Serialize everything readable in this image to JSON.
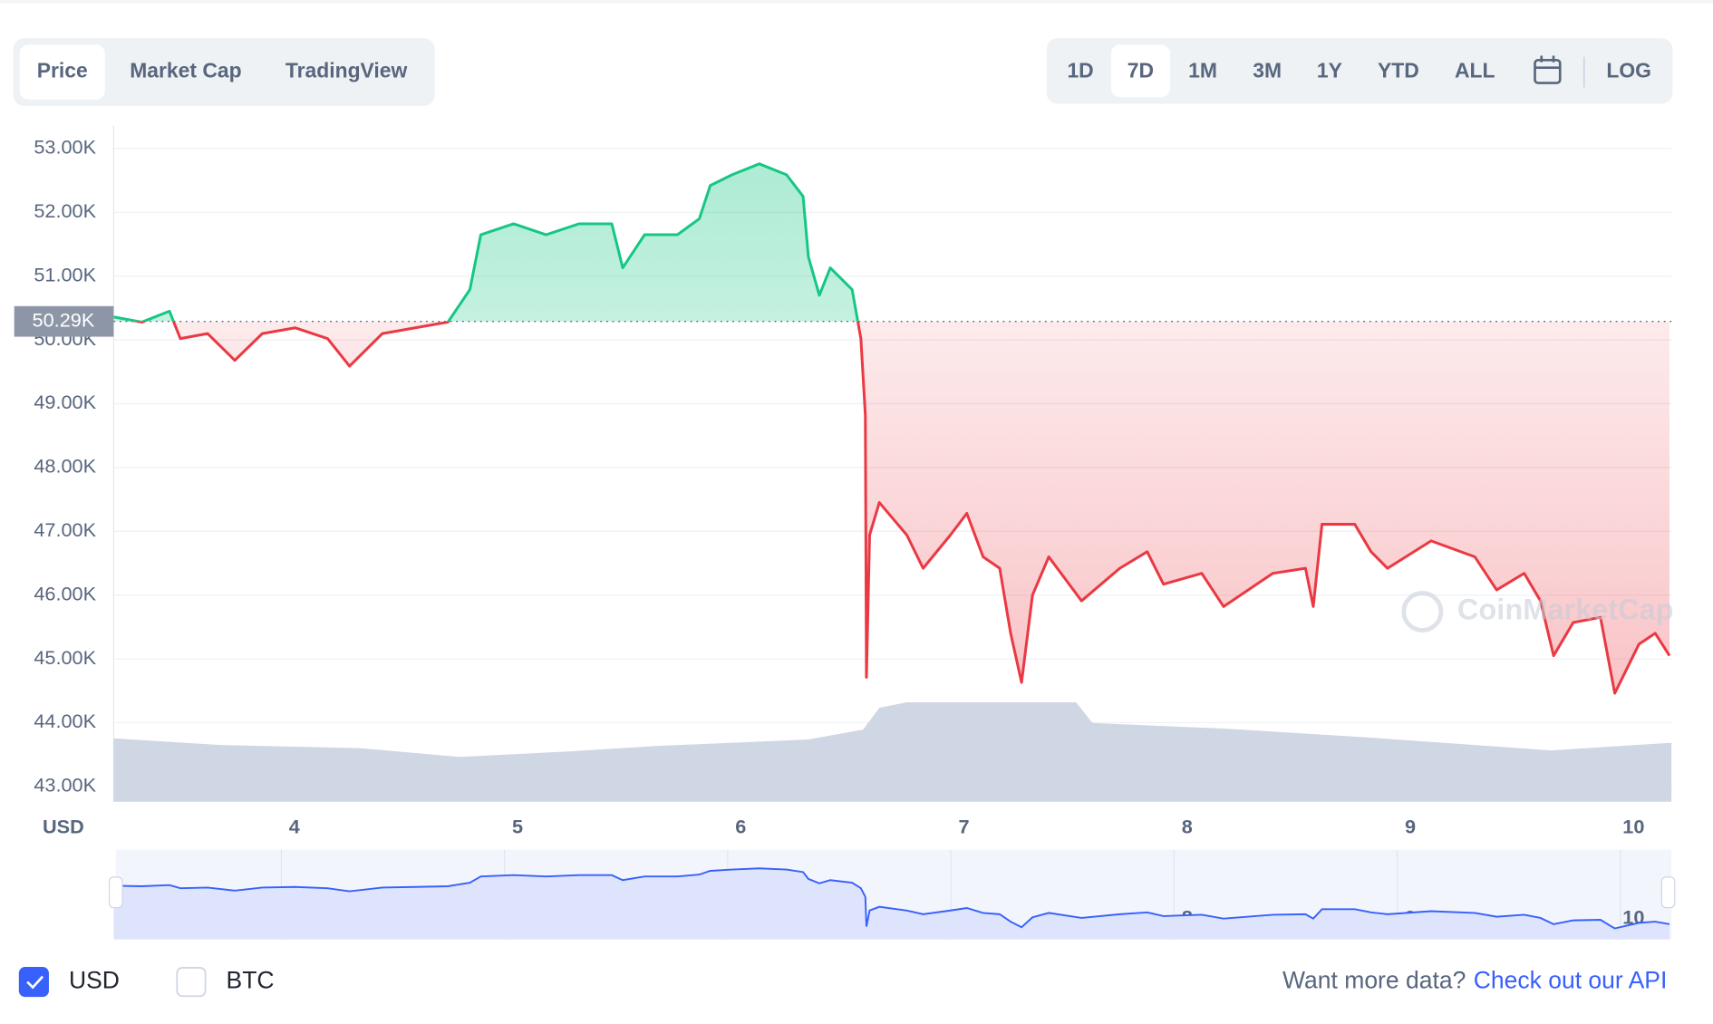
{
  "tabs": [
    "Price",
    "Market Cap",
    "TradingView"
  ],
  "active_tab": 0,
  "ranges": [
    "1D",
    "7D",
    "1M",
    "3M",
    "1Y",
    "YTD",
    "ALL"
  ],
  "active_range": 1,
  "scale_toggle": "LOG",
  "watermark": "CoinMarketCap",
  "currency_toggles": [
    {
      "label": "USD",
      "checked": true
    },
    {
      "label": "BTC",
      "checked": false
    }
  ],
  "footer": {
    "text": "Want more data?",
    "link": "Check out our API"
  },
  "chart_data": {
    "type": "line",
    "currency_label": "USD",
    "x": [
      3.19,
      3.317,
      3.44,
      3.489,
      3.611,
      3.733,
      3.856,
      4.003,
      4.149,
      4.247,
      4.394,
      4.541,
      4.688,
      4.786,
      4.835,
      4.982,
      5.128,
      5.275,
      5.422,
      5.471,
      5.569,
      5.716,
      5.814,
      5.863,
      5.961,
      6.083,
      6.205,
      6.279,
      6.303,
      6.352,
      6.401,
      6.499,
      6.538,
      6.558,
      6.563,
      6.577,
      6.621,
      6.744,
      6.817,
      6.939,
      7.013,
      7.086,
      7.16,
      7.209,
      7.258,
      7.307,
      7.38,
      7.527,
      7.698,
      7.821,
      7.894,
      8.065,
      8.163,
      8.384,
      8.53,
      8.565,
      8.604,
      8.751,
      8.824,
      8.898,
      9.093,
      9.289,
      9.387,
      9.51,
      9.583,
      9.642,
      9.73,
      9.852,
      9.916,
      10.024,
      10.097,
      10.161
    ],
    "values": [
      50360,
      50280,
      50450,
      50020,
      50100,
      49680,
      50100,
      50190,
      50020,
      49590,
      50100,
      50190,
      50280,
      50790,
      51650,
      51820,
      51650,
      51820,
      51820,
      51130,
      51650,
      51650,
      51900,
      52420,
      52590,
      52760,
      52590,
      52250,
      51300,
      50700,
      51130,
      50790,
      50020,
      48820,
      44710,
      46940,
      47450,
      46940,
      46420,
      46940,
      47280,
      46600,
      46420,
      45400,
      44630,
      46000,
      46600,
      45910,
      46420,
      46680,
      46170,
      46340,
      45820,
      46340,
      46420,
      45820,
      47110,
      47110,
      46680,
      46420,
      46850,
      46600,
      46080,
      46340,
      45910,
      45050,
      45570,
      45650,
      44460,
      45230,
      45400,
      45050
    ],
    "reference": {
      "value": 50290,
      "label": "50.29K"
    },
    "color_up": "#16c784",
    "color_down": "#ea3943",
    "xlim": [
      3.19,
      10.17
    ],
    "xticks": [
      4,
      5,
      6,
      7,
      8,
      9,
      10
    ],
    "ylim": [
      42760,
      53360
    ],
    "yticks": [
      {
        "value": 43000,
        "label": "43.00K"
      },
      {
        "value": 44000,
        "label": "44.00K"
      },
      {
        "value": 45000,
        "label": "45.00K"
      },
      {
        "value": 46000,
        "label": "46.00K"
      },
      {
        "value": 47000,
        "label": "47.00K"
      },
      {
        "value": 48000,
        "label": "48.00K"
      },
      {
        "value": 49000,
        "label": "49.00K"
      },
      {
        "value": 50000,
        "label": "50.00K"
      },
      {
        "value": 51000,
        "label": "51.00K"
      },
      {
        "value": 52000,
        "label": "52.00K"
      },
      {
        "value": 53000,
        "label": "53.00K"
      }
    ],
    "grid": true
  }
}
